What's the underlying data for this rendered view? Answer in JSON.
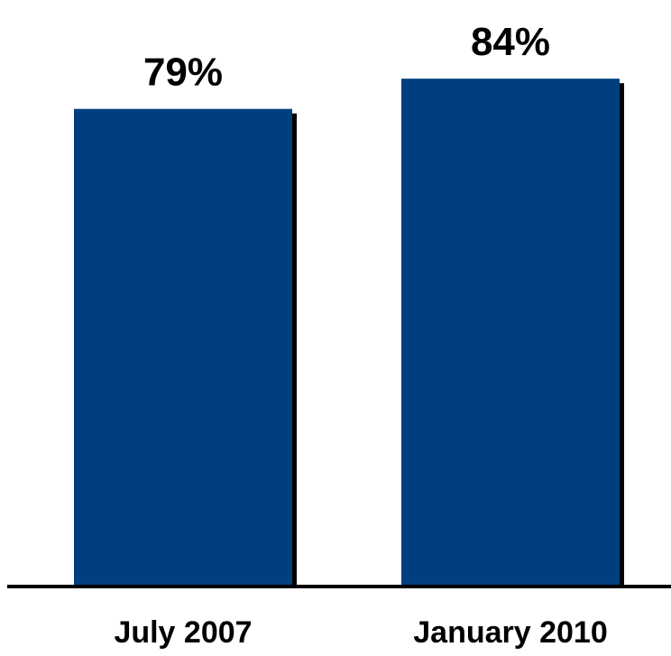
{
  "chart_data": {
    "type": "bar",
    "categories": [
      "July 2007",
      "January 2010"
    ],
    "values": [
      79,
      84
    ],
    "value_labels": [
      "79%",
      "84%"
    ],
    "title": "",
    "xlabel": "",
    "ylabel": "",
    "grid": false,
    "legend": "none",
    "colors": {
      "bar": "#003f7f",
      "shadow": "#000000",
      "axis": "#000000"
    }
  }
}
